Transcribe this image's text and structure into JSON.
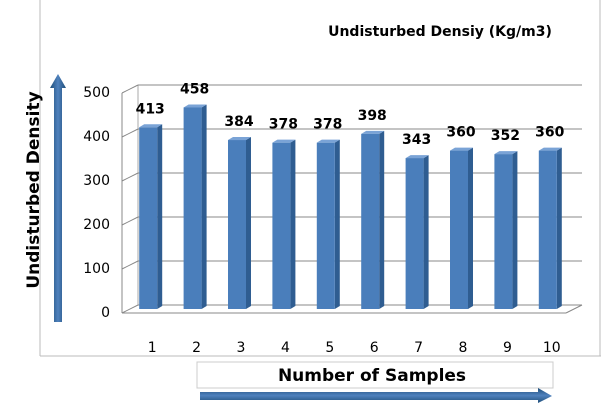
{
  "chart_data": {
    "type": "bar",
    "title": "Undisturbed Densiy (Kg/m3)",
    "x_label": "Number of Samples",
    "y_label": "Undisturbed Density",
    "categories": [
      "1",
      "2",
      "3",
      "4",
      "5",
      "6",
      "7",
      "8",
      "9",
      "10"
    ],
    "values": [
      413,
      458,
      384,
      378,
      378,
      398,
      343,
      360,
      352,
      360
    ],
    "color": "#4a7ebb",
    "ylim": [
      0,
      500
    ],
    "yticks": [
      0,
      100,
      200,
      300,
      400,
      500
    ],
    "grid": true
  }
}
